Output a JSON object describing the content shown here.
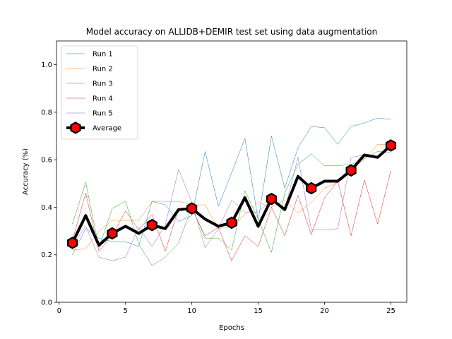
{
  "chart_data": {
    "type": "line",
    "title": "Model accuracy on ALLIDB+DEMIR test set using data augmentation",
    "xlabel": "Epochs",
    "ylabel": "Accuracy (%)",
    "xlim": [
      -0.2,
      26.2
    ],
    "ylim": [
      0.0,
      1.1
    ],
    "xticks": [
      0,
      5,
      10,
      15,
      20,
      25
    ],
    "yticks": [
      0.0,
      0.2,
      0.4,
      0.6,
      0.8,
      1.0
    ],
    "xtick_labels": [
      "0",
      "5",
      "10",
      "15",
      "20",
      "25"
    ],
    "ytick_labels": [
      "0.0",
      "0.2",
      "0.4",
      "0.6",
      "0.8",
      "1.0"
    ],
    "x": [
      1,
      2,
      3,
      4,
      5,
      6,
      7,
      8,
      9,
      10,
      11,
      12,
      13,
      14,
      15,
      16,
      17,
      18,
      19,
      20,
      21,
      22,
      23,
      24,
      25
    ],
    "grid": false,
    "legend_position": "top-left",
    "series": [
      {
        "name": "Run 1",
        "color": "#1f77b4",
        "width": 0.5,
        "values": [
          0.2,
          0.31,
          0.27,
          0.255,
          0.255,
          0.235,
          0.425,
          0.41,
          0.34,
          0.365,
          0.635,
          0.405,
          0.545,
          0.69,
          0.345,
          0.7,
          0.48,
          0.65,
          0.74,
          0.735,
          0.665,
          0.74,
          0.755,
          0.775,
          0.77
        ]
      },
      {
        "name": "Run 2",
        "color": "#ff7f0e",
        "width": 0.5,
        "values": [
          0.22,
          0.225,
          0.3,
          0.345,
          0.345,
          0.345,
          0.425,
          0.425,
          0.425,
          0.41,
          0.41,
          0.31,
          0.32,
          0.37,
          0.42,
          0.4,
          0.43,
          0.375,
          0.42,
          0.48,
          0.505,
          0.56,
          0.6,
          0.665,
          0.665
        ]
      },
      {
        "name": "Run 3",
        "color": "#2ca02c",
        "width": 0.5,
        "values": [
          0.33,
          0.505,
          0.23,
          0.395,
          0.425,
          0.245,
          0.155,
          0.19,
          0.25,
          0.4,
          0.27,
          0.27,
          0.22,
          0.47,
          0.35,
          0.21,
          0.46,
          0.58,
          0.625,
          0.575,
          0.575,
          0.58,
          0.605,
          0.635,
          0.63
        ]
      },
      {
        "name": "Run 4",
        "color": "#d62728",
        "width": 0.5,
        "values": [
          0.26,
          0.46,
          0.215,
          0.28,
          0.385,
          0.305,
          0.37,
          0.215,
          0.395,
          0.395,
          0.28,
          0.315,
          0.175,
          0.28,
          0.235,
          0.4,
          0.28,
          0.45,
          0.285,
          0.44,
          0.51,
          0.28,
          0.515,
          0.33,
          0.555
        ]
      },
      {
        "name": "Run 5",
        "color": "#9467bd",
        "width": 0.5,
        "values": [
          0.24,
          0.32,
          0.19,
          0.175,
          0.19,
          0.315,
          0.235,
          0.325,
          0.56,
          0.42,
          0.23,
          0.31,
          0.43,
          0.38,
          0.38,
          0.43,
          0.39,
          0.61,
          0.305,
          0.305,
          0.31,
          0.61,
          0.62,
          0.61,
          0.66
        ]
      },
      {
        "name": "Average",
        "color": "#000000",
        "width": 4,
        "marker": "hexagon",
        "marker_color": "#ff0000",
        "marker_every": 3,
        "values": [
          0.25,
          0.365,
          0.24,
          0.29,
          0.32,
          0.29,
          0.325,
          0.31,
          0.39,
          0.395,
          0.35,
          0.32,
          0.335,
          0.44,
          0.32,
          0.435,
          0.39,
          0.53,
          0.48,
          0.51,
          0.51,
          0.555,
          0.62,
          0.61,
          0.66
        ]
      }
    ]
  }
}
